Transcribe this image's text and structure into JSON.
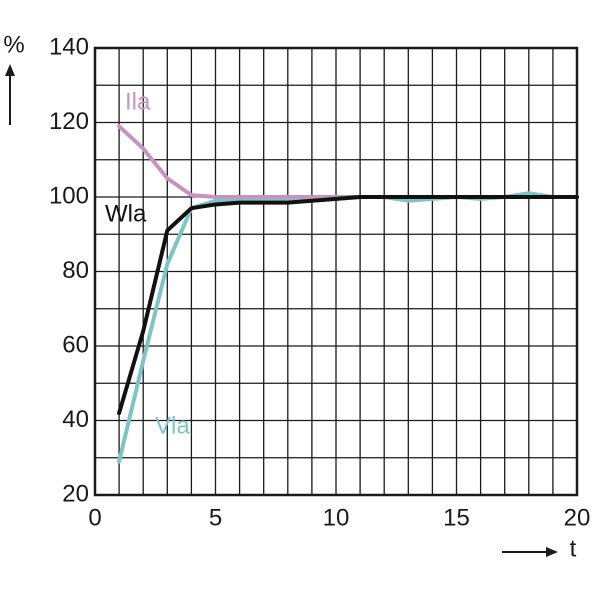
{
  "chart_data": {
    "type": "line",
    "y_label": "%",
    "x_label": "t",
    "x": [
      1,
      2,
      3,
      4,
      5,
      6,
      7,
      8,
      9,
      10,
      11,
      12,
      13,
      14,
      15,
      16,
      17,
      18,
      19,
      20
    ],
    "series": [
      {
        "name": "Ila",
        "color": "#c893c0",
        "values": [
          119,
          113,
          105,
          100.5,
          100,
          100,
          100,
          100,
          100,
          100,
          100,
          100,
          100,
          100,
          100,
          100,
          100,
          100,
          100,
          100
        ]
      },
      {
        "name": "Vla",
        "color": "#7cc4c6",
        "values": [
          29,
          56,
          82,
          97,
          99,
          99,
          99,
          99,
          99,
          99.5,
          100,
          100,
          99,
          99.5,
          100,
          99.5,
          100,
          101,
          100,
          100
        ]
      },
      {
        "name": "Wla",
        "color": "#111111",
        "values": [
          42,
          64,
          91,
          97,
          98,
          98.5,
          98.5,
          98.5,
          99,
          99.5,
          100,
          100,
          100,
          100,
          100,
          100,
          100,
          100,
          100,
          100
        ]
      }
    ],
    "xlim": [
      0,
      20
    ],
    "xticks": [
      0,
      5,
      10,
      15,
      20
    ],
    "ylim": [
      20,
      140
    ],
    "yticks": [
      20,
      40,
      60,
      80,
      100,
      120,
      140
    ],
    "grid": true
  }
}
